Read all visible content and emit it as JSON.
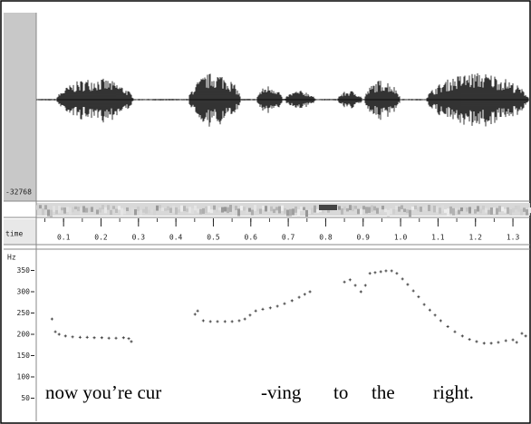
{
  "chart_data": {
    "type": "scatter",
    "waveform_min": -32768,
    "x_label": "time",
    "y_label": "Hz",
    "x": [
      0.069,
      0.078,
      0.088,
      0.105,
      0.124,
      0.144,
      0.163,
      0.182,
      0.202,
      0.221,
      0.24,
      0.26,
      0.274,
      0.281,
      0.451,
      0.458,
      0.473,
      0.492,
      0.511,
      0.531,
      0.55,
      0.569,
      0.584,
      0.598,
      0.613,
      0.632,
      0.652,
      0.671,
      0.69,
      0.71,
      0.729,
      0.744,
      0.758,
      0.85,
      0.865,
      0.879,
      0.894,
      0.906,
      0.918,
      0.932,
      0.947,
      0.961,
      0.976,
      0.99,
      1.005,
      1.019,
      1.034,
      1.048,
      1.063,
      1.078,
      1.092,
      1.107,
      1.126,
      1.145,
      1.165,
      1.184,
      1.203,
      1.223,
      1.242,
      1.261,
      1.281,
      1.3,
      1.31,
      1.324,
      1.334
    ],
    "y": [
      236,
      206,
      200,
      196,
      194,
      193,
      193,
      192,
      192,
      191,
      191,
      192,
      190,
      183,
      247,
      255,
      232,
      230,
      230,
      230,
      230,
      232,
      236,
      245,
      255,
      259,
      262,
      266,
      272,
      279,
      287,
      294,
      300,
      323,
      328,
      315,
      300,
      315,
      343,
      345,
      347,
      349,
      349,
      343,
      330,
      317,
      302,
      288,
      270,
      257,
      245,
      232,
      218,
      206,
      196,
      188,
      183,
      179,
      179,
      181,
      185,
      187,
      181,
      202,
      196
    ],
    "color": "#333333",
    "xlim": [
      0.027,
      1.341
    ],
    "ylim": [
      0,
      400
    ],
    "xticks": [
      0.1,
      0.2,
      0.3,
      0.4,
      0.5,
      0.6,
      0.7,
      0.8,
      0.9,
      {
        "value": 1,
        "label": "1.0"
      },
      1.1,
      1.2,
      1.3
    ],
    "yticks": [
      50,
      100,
      150,
      200,
      250,
      300,
      350
    ],
    "words": [
      "now you’re cur",
      "-ving",
      "to",
      "the",
      "right."
    ]
  }
}
